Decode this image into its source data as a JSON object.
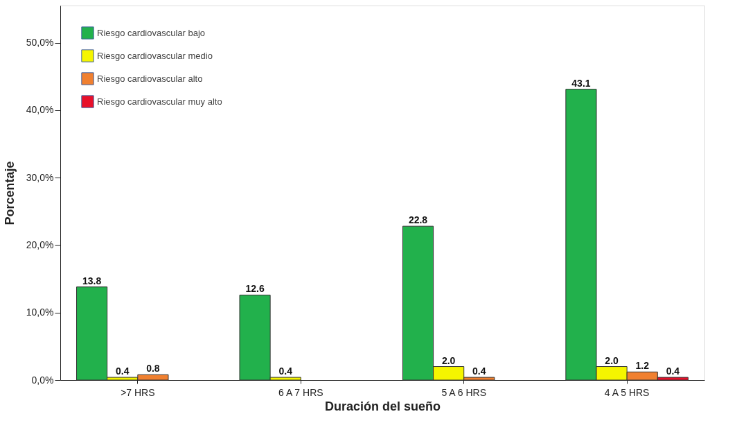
{
  "chart_data": {
    "type": "bar",
    "xlabel": "Duración del sueño",
    "ylabel": "Porcentaje",
    "categories": [
      ">7 HRS",
      "6 A 7  HRS",
      "5 A 6   HRS",
      "4 A 5 HRS"
    ],
    "series": [
      {
        "name": "Riesgo cardiovascular bajo",
        "color": "#22b14c",
        "values": [
          13.8,
          12.6,
          22.8,
          43.1
        ],
        "value_labels": [
          "13.8",
          "12.6",
          "22.8",
          "43.1"
        ]
      },
      {
        "name": "Riesgo cardiovascular medio",
        "color": "#f5f500",
        "values": [
          0.4,
          0.4,
          2.0,
          2.0
        ],
        "value_labels": [
          "0.4",
          "0.4",
          "2.0",
          "2.0"
        ]
      },
      {
        "name": "Riesgo cardiovascular alto",
        "color": "#f08030",
        "values": [
          0.8,
          null,
          0.4,
          1.2
        ],
        "value_labels": [
          "0.8",
          null,
          "0.4",
          "1.2"
        ]
      },
      {
        "name": "Riesgo cardiovascular muy alto",
        "color": "#e8102a",
        "values": [
          null,
          null,
          null,
          0.4
        ],
        "value_labels": [
          null,
          null,
          null,
          "0.4"
        ]
      }
    ],
    "ylim": [
      0,
      55.5
    ],
    "yticks": [
      {
        "value": 0,
        "label": "0,0%"
      },
      {
        "value": 10,
        "label": "10,0%"
      },
      {
        "value": 20,
        "label": "20,0%"
      },
      {
        "value": 30,
        "label": "30,0%"
      },
      {
        "value": 40,
        "label": "40,0%"
      },
      {
        "value": 50,
        "label": "50,0%"
      }
    ],
    "legend": "top left",
    "grid": false
  }
}
